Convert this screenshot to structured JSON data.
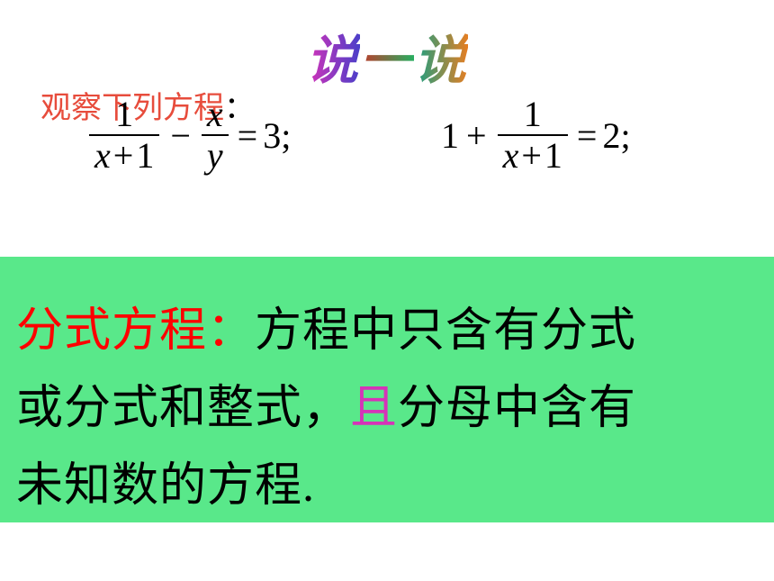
{
  "title": {
    "char1": "说",
    "char2": "一",
    "char3": "说",
    "fontsize": 58,
    "gradient_colors": [
      "#d633b8",
      "#4a3fc9",
      "#c0392b",
      "#27ae60",
      "#16a085",
      "#e67e22"
    ]
  },
  "subtitle": {
    "red_part": "观察下列方程",
    "black_part": "：",
    "color": "#e74c3c",
    "fontsize": 34
  },
  "equations": {
    "eq1": {
      "frac1_num": "1",
      "frac1_den_prefix": "x",
      "frac1_den_op": "+",
      "frac1_den_suffix": "1",
      "op1": "−",
      "frac2_num": "x",
      "frac2_den": "y",
      "op2": "=",
      "rhs": "3;",
      "fontsize": 40
    },
    "eq2": {
      "lhs": "1",
      "op1": "+",
      "frac_num": "1",
      "frac_den_prefix": "x",
      "frac_den_op": "+",
      "frac_den_suffix": "1",
      "op2": "=",
      "rhs": "2;",
      "fontsize": 40
    }
  },
  "definition": {
    "term": "分式方程：",
    "line1_rest": "方程中只含有分式",
    "line2_part1": "或分式和整式，",
    "line2_highlight": "且",
    "line2_part2": "分母中含有",
    "line3": "未知数的方程.",
    "term_color": "#ff0000",
    "highlight_color": "#d633b8",
    "background_color": "#59e88a",
    "fontsize": 52
  }
}
